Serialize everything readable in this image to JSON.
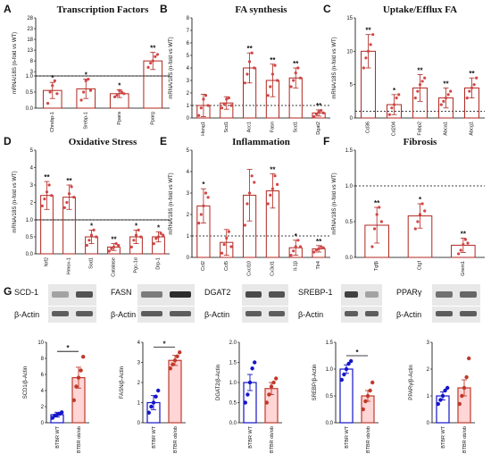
{
  "colors": {
    "upper_bar": "#b0261f",
    "upper_point": "#d14646",
    "wt": "#1515c8",
    "obob": "#c0392b",
    "obob_fill": "#ffd5d5",
    "blot_bg": "#e8e8e8"
  },
  "ylabel_fold": "mRNA/18S (n-fold vs WT)",
  "panels": [
    {
      "letter": "A",
      "title": "Transcription Factors",
      "ylim_lo": [
        0,
        1
      ],
      "ticks_lo": [
        "0.0",
        "0.5",
        "1.0"
      ],
      "ylim_hi": [
        1,
        28
      ],
      "ticks_hi": [
        "3",
        "8",
        "13",
        "18",
        "23",
        "28"
      ],
      "categories": [
        "Chrebp-1",
        "Srebp-1",
        "Ppara",
        "Pparg"
      ],
      "values": [
        0.55,
        0.6,
        0.45,
        8
      ],
      "errors": [
        0.25,
        0.3,
        0.12,
        4
      ],
      "stars": [
        "*",
        "*",
        "*",
        "**"
      ],
      "points": [
        [
          0.15,
          0.5,
          0.7,
          0.85,
          0.45
        ],
        [
          0.25,
          0.5,
          0.85,
          0.9,
          0.55
        ],
        [
          0.35,
          0.4,
          0.55,
          0.5,
          0.45
        ],
        [
          5,
          7,
          8,
          10,
          11
        ]
      ]
    },
    {
      "letter": "B",
      "title": "FA synthesis",
      "ylim": [
        0,
        8
      ],
      "ticks": [
        "0",
        "1",
        "2",
        "3",
        "4",
        "5",
        "6",
        "7",
        "8"
      ],
      "categories": [
        "Hsng1",
        "Scd1",
        "Acc1",
        "Fasn",
        "Scd1",
        "Dgat2"
      ],
      "values": [
        1.0,
        1.2,
        4.0,
        3.0,
        3.2,
        0.4
      ],
      "errors": [
        0.9,
        0.5,
        1.2,
        1.3,
        0.8,
        0.25
      ],
      "stars": [
        "",
        "",
        "**",
        "**",
        "**",
        "**"
      ],
      "points": [
        [
          0.2,
          0.8,
          1.5,
          1.8,
          1.0
        ],
        [
          0.8,
          1.1,
          1.5,
          1.6,
          1.0
        ],
        [
          2.8,
          3.5,
          4.5,
          5.2,
          4.0
        ],
        [
          1.8,
          2.5,
          3.5,
          4.2,
          3.0
        ],
        [
          2.5,
          3.0,
          3.6,
          4.0,
          3.2
        ],
        [
          0.1,
          0.3,
          0.5,
          0.6,
          0.4
        ]
      ]
    },
    {
      "letter": "C",
      "title": "Uptake/Efflux FA",
      "ylim": [
        0,
        15
      ],
      "ticks": [
        "0",
        "5",
        "10",
        "15"
      ],
      "categories": [
        "Cd36",
        "Cd204",
        "Fabp2",
        "Abca1",
        "Abcg1"
      ],
      "values": [
        10.0,
        2.0,
        4.5,
        3.0,
        4.5
      ],
      "errors": [
        2.5,
        1.5,
        2.0,
        1.5,
        1.5
      ],
      "stars": [
        "**",
        "*",
        "**",
        "**",
        "**"
      ],
      "points": [
        [
          7.5,
          9,
          10,
          11,
          12.5
        ],
        [
          0.5,
          1.5,
          2,
          3,
          3.5
        ],
        [
          3,
          4,
          5,
          5.5,
          6
        ],
        [
          2,
          2.5,
          3,
          3.5,
          4
        ],
        [
          3,
          4,
          4.5,
          5,
          6
        ]
      ]
    },
    {
      "letter": "D",
      "title": "Oxidative Stress",
      "ylim_lo": [
        0,
        1
      ],
      "ticks_lo": [
        "0.0",
        "0.5",
        "1.0"
      ],
      "ylim_hi": [
        1,
        5
      ],
      "ticks_hi": [
        "2",
        "3",
        "4",
        "5"
      ],
      "categories": [
        "Nrf2",
        "Hmox-1",
        "Sod1",
        "Catalase",
        "Pgc-1α",
        "Drp-1"
      ],
      "values": [
        2.4,
        2.3,
        0.5,
        0.2,
        0.5,
        0.5
      ],
      "errors": [
        0.8,
        0.7,
        0.2,
        0.1,
        0.2,
        0.15
      ],
      "stars": [
        "**",
        "**",
        "*",
        "**",
        "*",
        "*"
      ],
      "points": [
        [
          1.8,
          2.2,
          2.6,
          3,
          2.4
        ],
        [
          1.7,
          2.0,
          2.5,
          2.9,
          2.3
        ],
        [
          0.25,
          0.4,
          0.55,
          0.7,
          0.5
        ],
        [
          0.08,
          0.15,
          0.2,
          0.3,
          0.25
        ],
        [
          0.2,
          0.4,
          0.55,
          0.7,
          0.5
        ],
        [
          0.3,
          0.45,
          0.5,
          0.6,
          0.55
        ]
      ]
    },
    {
      "letter": "E",
      "title": "Inflammation",
      "ylim": [
        0,
        5
      ],
      "ticks": [
        "0",
        "1",
        "2",
        "3",
        "4",
        "5"
      ],
      "categories": [
        "Ccl2",
        "Ccl5",
        "Cxcl10",
        "Cx3cl1",
        "Il-1β",
        "Tlr4"
      ],
      "values": [
        2.4,
        0.7,
        2.9,
        3.1,
        0.45,
        0.4
      ],
      "errors": [
        0.8,
        0.6,
        1.2,
        0.8,
        0.35,
        0.15
      ],
      "stars": [
        "*",
        "",
        "",
        "**",
        "*",
        "**"
      ],
      "points": [
        [
          1.6,
          2.0,
          2.4,
          3.0,
          2.8
        ],
        [
          0.2,
          0.6,
          0.9,
          1.2,
          0.5
        ],
        [
          1.5,
          2.5,
          3.0,
          3.8,
          3.5
        ],
        [
          2.5,
          2.9,
          3.2,
          3.8,
          3.4
        ],
        [
          0.1,
          0.3,
          0.5,
          0.8,
          0.5
        ],
        [
          0.25,
          0.35,
          0.4,
          0.5,
          0.45
        ]
      ]
    },
    {
      "letter": "F",
      "title": "Fibrosis",
      "ylim": [
        0,
        1.5
      ],
      "ticks": [
        "0.0",
        "0.5",
        "1.0",
        "1.5"
      ],
      "categories": [
        "Tgfβ",
        "Ctgf",
        "Grem1"
      ],
      "values": [
        0.45,
        0.58,
        0.17
      ],
      "errors": [
        0.25,
        0.17,
        0.1
      ],
      "stars": [
        "**",
        "*",
        "**"
      ],
      "points": [
        [
          0.15,
          0.4,
          0.6,
          0.7,
          0.5
        ],
        [
          0.4,
          0.5,
          0.6,
          0.75,
          0.65
        ],
        [
          0.05,
          0.1,
          0.18,
          0.25,
          0.2
        ]
      ]
    }
  ],
  "blots": [
    {
      "label": "SCD-1",
      "actin": "β-Actin"
    },
    {
      "label": "FASN",
      "actin": "β-Actin"
    },
    {
      "label": "DGAT2",
      "actin": "β-Actin"
    },
    {
      "label": "SREBP-1",
      "actin": "β-Actin"
    },
    {
      "label": "PPARγ",
      "actin": "β-Actin"
    }
  ],
  "panel_g_letter": "G",
  "chart_data": [
    {
      "type": "bar",
      "ylabel": "SCD1/β-Actin",
      "ylim": [
        0,
        10
      ],
      "ticks": [
        "0",
        "2",
        "4",
        "6",
        "8",
        "10"
      ],
      "categories": [
        "BTBR WT",
        "BTBR ob/ob"
      ],
      "values": [
        1.0,
        5.6
      ],
      "errors": [
        0.3,
        1.3
      ],
      "star": "*",
      "points": [
        [
          0.6,
          0.9,
          1.0,
          1.1,
          1.3
        ],
        [
          2.8,
          4.5,
          5.6,
          6.5,
          8.2
        ]
      ]
    },
    {
      "type": "bar",
      "ylabel": "FASN/β-Actin",
      "ylim": [
        0,
        4
      ],
      "ticks": [
        "0",
        "1",
        "2",
        "3",
        "4"
      ],
      "categories": [
        "BTBR WT",
        "BTBR ob/ob"
      ],
      "values": [
        1.0,
        3.1
      ],
      "errors": [
        0.35,
        0.25
      ],
      "star": "*",
      "points": [
        [
          0.5,
          0.8,
          1.0,
          1.3,
          1.6
        ],
        [
          2.7,
          2.9,
          3.1,
          3.3,
          3.5
        ]
      ]
    },
    {
      "type": "bar",
      "ylabel": "DGAT2/β-Actin",
      "ylim": [
        0,
        2.0
      ],
      "ticks": [
        "0.0",
        "0.5",
        "1.0",
        "1.5",
        "2.0"
      ],
      "categories": [
        "BTBR WT",
        "BTBR ob/ob"
      ],
      "values": [
        1.0,
        0.85
      ],
      "errors": [
        0.2,
        0.15
      ],
      "star": "",
      "points": [
        [
          0.5,
          0.7,
          1.0,
          1.35,
          1.5
        ],
        [
          0.5,
          0.7,
          0.9,
          1.0,
          1.1
        ]
      ]
    },
    {
      "type": "bar",
      "ylabel": "SREBP/β-Actin",
      "ylim": [
        0,
        1.5
      ],
      "ticks": [
        "0.0",
        "0.5",
        "1.0",
        "1.5"
      ],
      "categories": [
        "BTBR WT",
        "BTBR ob/ob"
      ],
      "values": [
        1.0,
        0.5
      ],
      "errors": [
        0.08,
        0.1
      ],
      "star": "*",
      "points": [
        [
          0.8,
          0.9,
          1.0,
          1.1,
          1.15
        ],
        [
          0.25,
          0.4,
          0.5,
          0.6,
          0.75
        ]
      ]
    },
    {
      "type": "bar",
      "ylabel": "PPARγ/β-Actin",
      "ylim": [
        0,
        3
      ],
      "ticks": [
        "0",
        "1",
        "2",
        "3"
      ],
      "categories": [
        "BTBR WT",
        "BTBR ob/ob"
      ],
      "values": [
        1.0,
        1.3
      ],
      "errors": [
        0.15,
        0.3
      ],
      "star": "",
      "points": [
        [
          0.7,
          0.85,
          1.0,
          1.2,
          1.3
        ],
        [
          0.7,
          1.0,
          1.3,
          1.7,
          2.4
        ]
      ]
    }
  ]
}
